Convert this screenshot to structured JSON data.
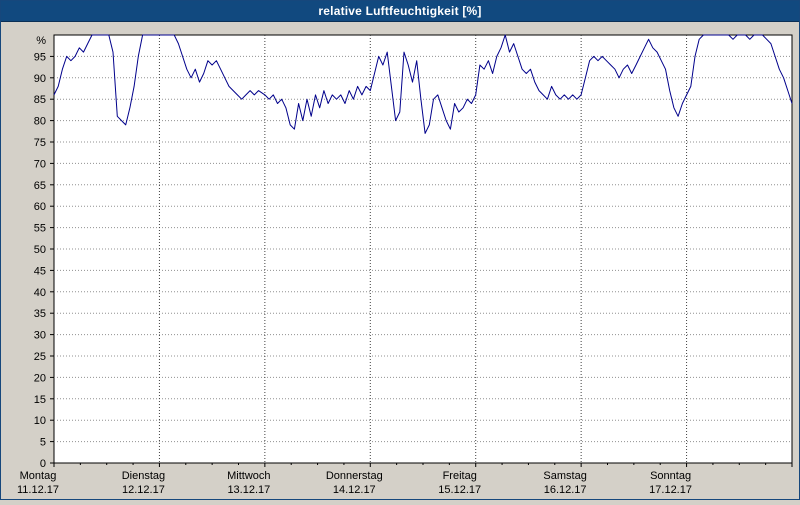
{
  "window": {
    "title": "relative Luftfeuchtigkeit [%]"
  },
  "chart_data": {
    "type": "line",
    "title": "relative Luftfeuchtigkeit [%]",
    "ylabel": "%",
    "y_unit_label": "%",
    "ylim": [
      0,
      100
    ],
    "y_tick_step": 5,
    "y_ticks": [
      0,
      5,
      10,
      15,
      20,
      25,
      30,
      35,
      40,
      45,
      50,
      55,
      60,
      65,
      70,
      75,
      80,
      85,
      90,
      95
    ],
    "grid": true,
    "legend_position": "none",
    "colors": {
      "line": "#00008b",
      "titlebar_bg": "#11497f",
      "titlebar_text": "#ffffff",
      "plot_bg": "#ffffff",
      "outer_bg": "#d4d0c8",
      "grid_h": "#909090",
      "grid_v": "#404040",
      "axis": "#000000"
    },
    "x_days": [
      {
        "name": "Montag",
        "date": "11.12.17"
      },
      {
        "name": "Dienstag",
        "date": "12.12.17"
      },
      {
        "name": "Mittwoch",
        "date": "13.12.17"
      },
      {
        "name": "Donnerstag",
        "date": "14.12.17"
      },
      {
        "name": "Freitag",
        "date": "15.12.17"
      },
      {
        "name": "Samstag",
        "date": "16.12.17"
      },
      {
        "name": "Sonntag",
        "date": "17.12.17"
      }
    ],
    "x_range_days": [
      0,
      7
    ],
    "series": [
      {
        "name": "relative Luftfeuchtigkeit",
        "unit": "%",
        "color": "#00008b",
        "points": [
          [
            0.0,
            86
          ],
          [
            0.04,
            88
          ],
          [
            0.08,
            92
          ],
          [
            0.12,
            95
          ],
          [
            0.16,
            94
          ],
          [
            0.2,
            95
          ],
          [
            0.24,
            97
          ],
          [
            0.28,
            96
          ],
          [
            0.32,
            98
          ],
          [
            0.36,
            100
          ],
          [
            0.44,
            100
          ],
          [
            0.52,
            100
          ],
          [
            0.56,
            96
          ],
          [
            0.6,
            81
          ],
          [
            0.64,
            80
          ],
          [
            0.68,
            79
          ],
          [
            0.72,
            83
          ],
          [
            0.76,
            88
          ],
          [
            0.8,
            95
          ],
          [
            0.84,
            100
          ],
          [
            0.92,
            100
          ],
          [
            1.0,
            100
          ],
          [
            1.08,
            100
          ],
          [
            1.14,
            100
          ],
          [
            1.18,
            98
          ],
          [
            1.22,
            95
          ],
          [
            1.26,
            92
          ],
          [
            1.3,
            90
          ],
          [
            1.34,
            92
          ],
          [
            1.38,
            89
          ],
          [
            1.42,
            91
          ],
          [
            1.46,
            94
          ],
          [
            1.5,
            93
          ],
          [
            1.54,
            94
          ],
          [
            1.58,
            92
          ],
          [
            1.62,
            90
          ],
          [
            1.66,
            88
          ],
          [
            1.7,
            87
          ],
          [
            1.74,
            86
          ],
          [
            1.78,
            85
          ],
          [
            1.82,
            86
          ],
          [
            1.86,
            87
          ],
          [
            1.9,
            86
          ],
          [
            1.94,
            87
          ],
          [
            2.0,
            86
          ],
          [
            2.04,
            85
          ],
          [
            2.08,
            86
          ],
          [
            2.12,
            84
          ],
          [
            2.16,
            85
          ],
          [
            2.2,
            83
          ],
          [
            2.24,
            79
          ],
          [
            2.28,
            78
          ],
          [
            2.32,
            84
          ],
          [
            2.36,
            80
          ],
          [
            2.4,
            85
          ],
          [
            2.44,
            81
          ],
          [
            2.48,
            86
          ],
          [
            2.52,
            83
          ],
          [
            2.56,
            87
          ],
          [
            2.6,
            84
          ],
          [
            2.64,
            86
          ],
          [
            2.68,
            85
          ],
          [
            2.72,
            86
          ],
          [
            2.76,
            84
          ],
          [
            2.8,
            87
          ],
          [
            2.84,
            85
          ],
          [
            2.88,
            88
          ],
          [
            2.92,
            86
          ],
          [
            2.96,
            88
          ],
          [
            3.0,
            87
          ],
          [
            3.04,
            91
          ],
          [
            3.08,
            95
          ],
          [
            3.12,
            93
          ],
          [
            3.16,
            96
          ],
          [
            3.2,
            88
          ],
          [
            3.24,
            80
          ],
          [
            3.28,
            82
          ],
          [
            3.32,
            96
          ],
          [
            3.36,
            93
          ],
          [
            3.4,
            89
          ],
          [
            3.44,
            94
          ],
          [
            3.48,
            85
          ],
          [
            3.52,
            77
          ],
          [
            3.56,
            79
          ],
          [
            3.6,
            85
          ],
          [
            3.64,
            86
          ],
          [
            3.68,
            83
          ],
          [
            3.72,
            80
          ],
          [
            3.76,
            78
          ],
          [
            3.8,
            84
          ],
          [
            3.84,
            82
          ],
          [
            3.88,
            83
          ],
          [
            3.92,
            85
          ],
          [
            3.96,
            84
          ],
          [
            4.0,
            86
          ],
          [
            4.04,
            93
          ],
          [
            4.08,
            92
          ],
          [
            4.12,
            94
          ],
          [
            4.16,
            91
          ],
          [
            4.2,
            95
          ],
          [
            4.24,
            97
          ],
          [
            4.28,
            100
          ],
          [
            4.32,
            96
          ],
          [
            4.36,
            98
          ],
          [
            4.4,
            95
          ],
          [
            4.44,
            92
          ],
          [
            4.48,
            91
          ],
          [
            4.52,
            92
          ],
          [
            4.56,
            89
          ],
          [
            4.6,
            87
          ],
          [
            4.64,
            86
          ],
          [
            4.68,
            85
          ],
          [
            4.72,
            88
          ],
          [
            4.76,
            86
          ],
          [
            4.8,
            85
          ],
          [
            4.84,
            86
          ],
          [
            4.88,
            85
          ],
          [
            4.92,
            86
          ],
          [
            4.96,
            85
          ],
          [
            5.0,
            86
          ],
          [
            5.04,
            90
          ],
          [
            5.08,
            94
          ],
          [
            5.12,
            95
          ],
          [
            5.16,
            94
          ],
          [
            5.2,
            95
          ],
          [
            5.24,
            94
          ],
          [
            5.28,
            93
          ],
          [
            5.32,
            92
          ],
          [
            5.36,
            90
          ],
          [
            5.4,
            92
          ],
          [
            5.44,
            93
          ],
          [
            5.48,
            91
          ],
          [
            5.52,
            93
          ],
          [
            5.56,
            95
          ],
          [
            5.6,
            97
          ],
          [
            5.64,
            99
          ],
          [
            5.68,
            97
          ],
          [
            5.72,
            96
          ],
          [
            5.76,
            94
          ],
          [
            5.8,
            92
          ],
          [
            5.84,
            87
          ],
          [
            5.88,
            83
          ],
          [
            5.92,
            81
          ],
          [
            5.96,
            84
          ],
          [
            6.0,
            86
          ],
          [
            6.04,
            88
          ],
          [
            6.08,
            95
          ],
          [
            6.12,
            99
          ],
          [
            6.16,
            100
          ],
          [
            6.24,
            100
          ],
          [
            6.32,
            100
          ],
          [
            6.4,
            100
          ],
          [
            6.44,
            99
          ],
          [
            6.48,
            100
          ],
          [
            6.56,
            100
          ],
          [
            6.6,
            99
          ],
          [
            6.64,
            100
          ],
          [
            6.72,
            100
          ],
          [
            6.76,
            99
          ],
          [
            6.8,
            98
          ],
          [
            6.84,
            95
          ],
          [
            6.88,
            92
          ],
          [
            6.92,
            90
          ],
          [
            6.96,
            87
          ],
          [
            7.0,
            84
          ]
        ]
      }
    ]
  }
}
